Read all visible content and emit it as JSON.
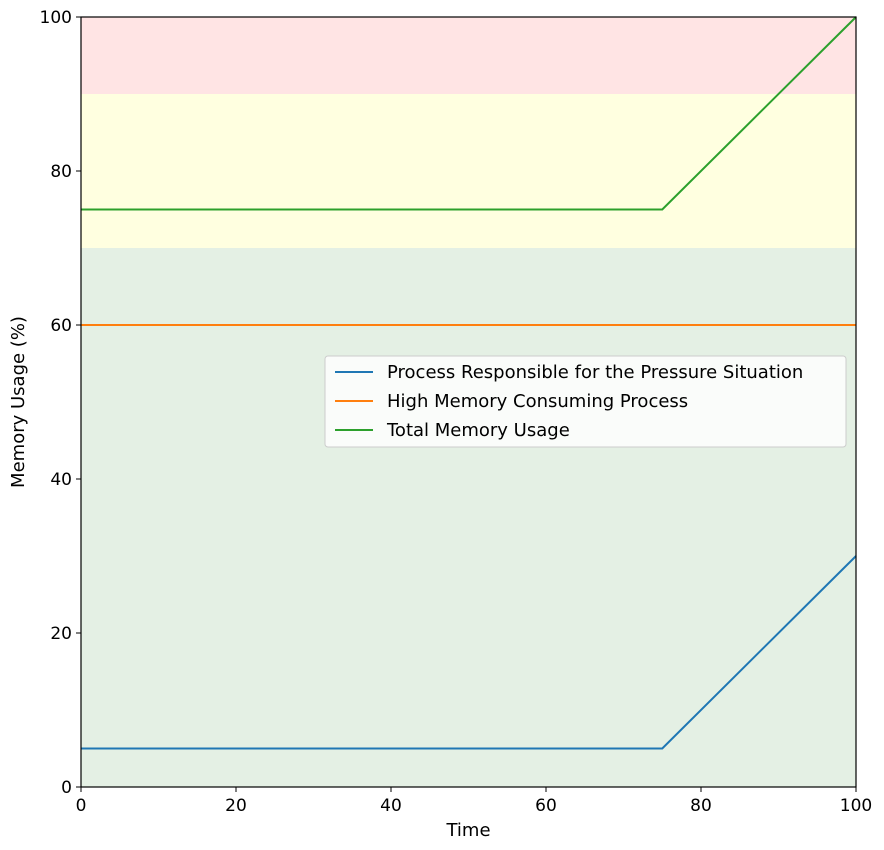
{
  "chart_data": {
    "type": "line",
    "title": "",
    "xlabel": "Time",
    "ylabel": "Memory Usage (%)",
    "xlim": [
      0,
      100
    ],
    "ylim": [
      0,
      100
    ],
    "xticks": [
      0,
      20,
      40,
      60,
      80,
      100
    ],
    "yticks": [
      0,
      20,
      40,
      60,
      80,
      100
    ],
    "grid": false,
    "legend_position": "center-right",
    "bands": [
      {
        "y0": 0,
        "y1": 70,
        "color": "#e4f0e4"
      },
      {
        "y0": 70,
        "y1": 90,
        "color": "#ffffe0"
      },
      {
        "y0": 90,
        "y1": 100,
        "color": "#ffe4e4"
      }
    ],
    "series": [
      {
        "name": "Process Responsible for the Pressure Situation",
        "color": "#1f77b4",
        "x": [
          0,
          75,
          100
        ],
        "y": [
          5,
          5,
          30
        ]
      },
      {
        "name": "High Memory Consuming Process",
        "color": "#ff7f0e",
        "x": [
          0,
          100
        ],
        "y": [
          60,
          60
        ]
      },
      {
        "name": "Total Memory Usage",
        "color": "#2ca02c",
        "x": [
          0,
          75,
          100
        ],
        "y": [
          75,
          75,
          100
        ]
      }
    ]
  }
}
